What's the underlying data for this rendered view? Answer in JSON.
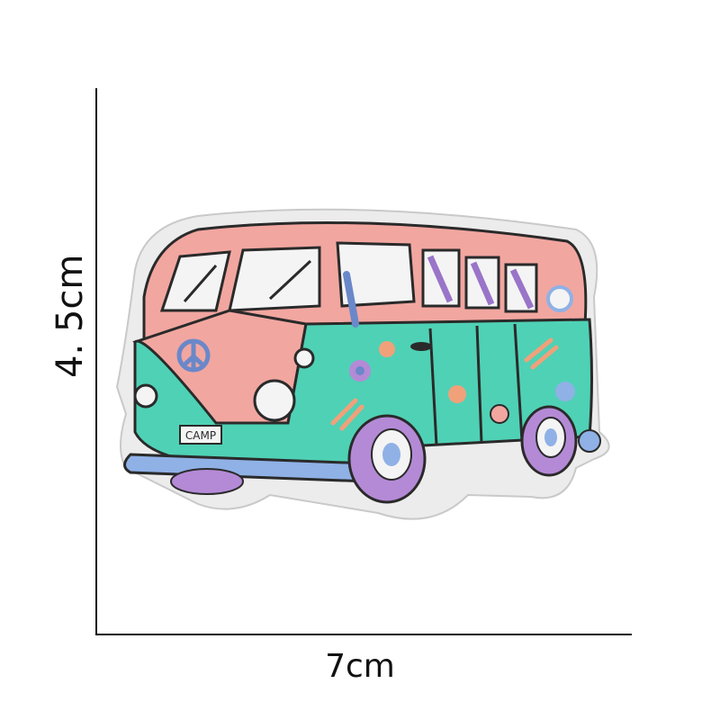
{
  "dimensions": {
    "height_label": "4. 5cm",
    "width_label": "7cm"
  },
  "patch": {
    "plate_text": "CAMP",
    "colors": {
      "body_pink": "#f2a6a0",
      "body_teal": "#4fd1b5",
      "window_white": "#f4f4f4",
      "stripe_purple": "#9a74c8",
      "bumper_blue": "#8fb1e6",
      "tire_purple": "#b48ad6",
      "outline": "#2a2a2a",
      "patch_border": "#e8e8e8"
    },
    "icons": [
      "peace-sign-icon",
      "flower-icon",
      "shooting-star-icon",
      "sun-icon",
      "pink-flower-icon"
    ]
  }
}
